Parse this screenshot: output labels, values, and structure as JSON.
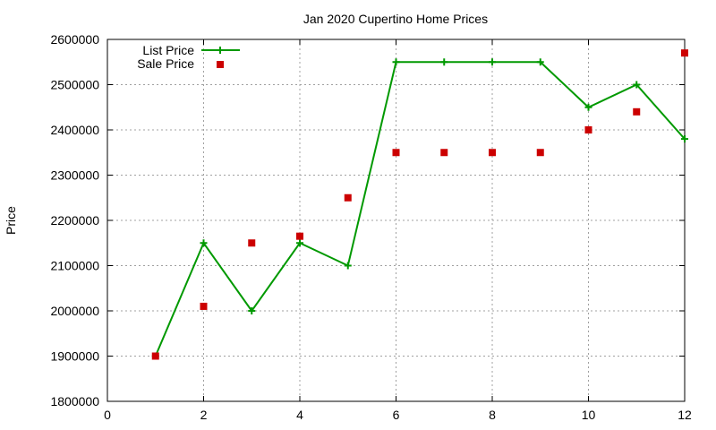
{
  "chart_data": {
    "type": "line",
    "title": "Jan 2020 Cupertino Home Prices",
    "xlabel": "",
    "ylabel": "Price",
    "xlim": [
      0,
      12
    ],
    "ylim": [
      1800000,
      2600000
    ],
    "x_ticks": [
      0,
      2,
      4,
      6,
      8,
      10,
      12
    ],
    "y_ticks": [
      1800000,
      1900000,
      2000000,
      2100000,
      2200000,
      2300000,
      2400000,
      2500000,
      2600000
    ],
    "grid": true,
    "legend_position": "top-left",
    "x": [
      1,
      2,
      3,
      4,
      5,
      6,
      7,
      8,
      9,
      10,
      11,
      12
    ],
    "series": [
      {
        "name": "List Price",
        "style": "line-with-plus-markers",
        "color": "#009900",
        "values": [
          1900000,
          2150000,
          2000000,
          2150000,
          2100000,
          2550000,
          2550000,
          2550000,
          2550000,
          2450000,
          2500000,
          2380000
        ]
      },
      {
        "name": "Sale Price",
        "style": "square-markers",
        "color": "#cc0000",
        "values": [
          1900000,
          2010000,
          2150000,
          2165000,
          2250000,
          2350000,
          2350000,
          2350000,
          2350000,
          2400000,
          2440000,
          2570000
        ]
      }
    ]
  }
}
